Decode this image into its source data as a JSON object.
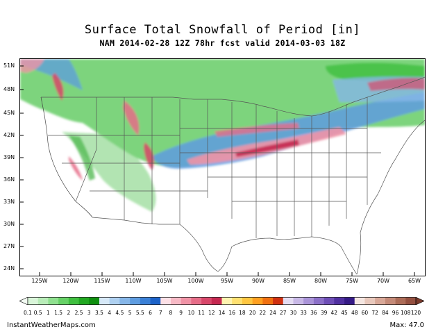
{
  "title": "Surface Total Snowfall of Period [in]",
  "subtitle": "NAM 2014-02-28 12Z 78hr fcst valid 2014-03-03 18Z",
  "lat_labels": [
    "51N",
    "48N",
    "45N",
    "42N",
    "39N",
    "36N",
    "33N",
    "30N",
    "27N",
    "24N"
  ],
  "lon_labels": [
    "125W",
    "120W",
    "115W",
    "110W",
    "105W",
    "100W",
    "95W",
    "90W",
    "85W",
    "80W",
    "75W",
    "70W",
    "65W"
  ],
  "colorbar": {
    "labels": [
      "0.1",
      "0.5",
      "1",
      "1.5",
      "2",
      "2.5",
      "3",
      "3.5",
      "4",
      "4.5",
      "5",
      "5.5",
      "6",
      "7",
      "8",
      "9",
      "10",
      "11",
      "12",
      "14",
      "16",
      "18",
      "20",
      "22",
      "24",
      "27",
      "30",
      "33",
      "36",
      "39",
      "42",
      "45",
      "48",
      "60",
      "72",
      "84",
      "96",
      "108",
      "120"
    ],
    "colors": [
      "#d9f5d9",
      "#b8ecb8",
      "#8fe08f",
      "#66d166",
      "#3fbf3f",
      "#22a822",
      "#0f8f0f",
      "#d6e8f7",
      "#aed0f0",
      "#86b6e8",
      "#5e9ce0",
      "#3a80d6",
      "#1c62c8",
      "#fde0e6",
      "#f7b9c5",
      "#f093a6",
      "#e66d88",
      "#d8476a",
      "#c52850",
      "#fff3b0",
      "#ffe070",
      "#ffc640",
      "#ffa020",
      "#f07010",
      "#d03010",
      "#e4dcf2",
      "#c8b8e6",
      "#aa94d8",
      "#8c70c8",
      "#6e4eb6",
      "#5030a0",
      "#351a86",
      "#f4e6e1",
      "#e8c8bc",
      "#d8a898",
      "#c48a78",
      "#ac6c58",
      "#945040"
    ]
  },
  "footer": {
    "site": "InstantWeatherMaps.com",
    "max": "Max:  47.0"
  }
}
